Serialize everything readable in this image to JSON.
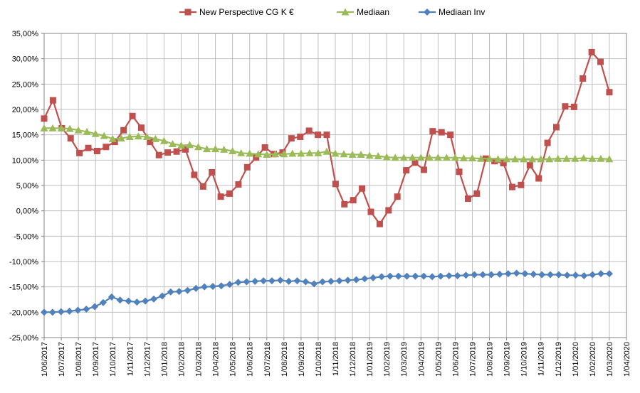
{
  "chart_data": {
    "type": "line",
    "title": "",
    "xlabel": "",
    "ylabel": "",
    "ylim": [
      -25,
      35
    ],
    "y_ticks": [
      "35,00%",
      "30,00%",
      "25,00%",
      "20,00%",
      "15,00%",
      "10,00%",
      "5,00%",
      "0,00%",
      "-5,00%",
      "-10,00%",
      "-15,00%",
      "-20,00%",
      "-25,00%"
    ],
    "x_ticks": [
      "1/06/2017",
      "1/07/2017",
      "1/08/2017",
      "1/09/2017",
      "1/10/2017",
      "1/11/2017",
      "1/12/2017",
      "1/01/2018",
      "1/02/2018",
      "1/03/2018",
      "1/04/2018",
      "1/05/2018",
      "1/06/2018",
      "1/07/2018",
      "1/08/2018",
      "1/09/2018",
      "1/10/2018",
      "1/11/2018",
      "1/12/2018",
      "1/01/2019",
      "1/02/2019",
      "1/03/2019",
      "1/04/2019",
      "1/05/2019",
      "1/06/2019",
      "1/07/2019",
      "1/08/2019",
      "1/09/2019",
      "1/10/2019",
      "1/11/2019",
      "1/12/2019",
      "1/01/2020",
      "1/02/2020",
      "1/03/2020",
      "1/04/2020"
    ],
    "grid": true,
    "legend_position": "top",
    "series": [
      {
        "name": "New Perspective CG K €",
        "color": "#c0504d",
        "marker": "square",
        "values": [
          18.2,
          21.8,
          16.3,
          14.3,
          11.4,
          12.4,
          11.8,
          12.6,
          13.6,
          15.9,
          18.7,
          16.4,
          13.6,
          11.0,
          11.5,
          11.7,
          12.1,
          7.1,
          4.8,
          7.6,
          2.8,
          3.4,
          5.2,
          8.6,
          10.5,
          12.5,
          11.2,
          11.5,
          14.3,
          14.6,
          15.8,
          15.0,
          15.0,
          5.3,
          1.3,
          2.1,
          4.4,
          -0.2,
          -2.6,
          0.1,
          2.8,
          8.0,
          9.5,
          8.1,
          15.7,
          15.5,
          15.0,
          7.7,
          2.4,
          3.4,
          10.3,
          9.8,
          9.4,
          4.7,
          5.1,
          9.0,
          6.4,
          13.4,
          16.5,
          20.6,
          20.5,
          26.1,
          31.3,
          29.4,
          23.4
        ]
      },
      {
        "name": "Mediaan",
        "color": "#9bbb59",
        "marker": "triangle",
        "values": [
          16.3,
          16.3,
          16.3,
          16.2,
          15.9,
          15.6,
          15.2,
          14.8,
          14.2,
          14.3,
          14.6,
          14.7,
          14.6,
          14.2,
          13.8,
          13.2,
          12.9,
          13.0,
          12.6,
          12.2,
          12.2,
          12.1,
          11.8,
          11.4,
          11.3,
          11.2,
          11.1,
          11.2,
          11.2,
          11.3,
          11.3,
          11.4,
          11.4,
          11.7,
          11.3,
          11.2,
          11.1,
          11.1,
          10.9,
          10.8,
          10.6,
          10.5,
          10.5,
          10.5,
          10.5,
          10.5,
          10.5,
          10.5,
          10.5,
          10.4,
          10.4,
          10.3,
          10.3,
          10.2,
          10.2,
          10.2,
          10.2,
          10.2,
          10.2,
          10.2,
          10.3,
          10.3,
          10.3,
          10.4,
          10.3,
          10.3,
          10.2
        ]
      },
      {
        "name": "Mediaan Inv",
        "color": "#4f81bd",
        "marker": "diamond",
        "values": [
          -20.0,
          -20.0,
          -19.9,
          -19.8,
          -19.6,
          -19.4,
          -18.9,
          -18.1,
          -17.0,
          -17.6,
          -17.8,
          -18.0,
          -17.8,
          -17.4,
          -16.8,
          -16.0,
          -15.9,
          -15.7,
          -15.3,
          -15.0,
          -14.9,
          -14.8,
          -14.5,
          -14.1,
          -14.0,
          -13.9,
          -13.8,
          -13.8,
          -13.7,
          -13.9,
          -13.8,
          -14.0,
          -14.4,
          -14.0,
          -13.9,
          -13.8,
          -13.7,
          -13.6,
          -13.4,
          -13.2,
          -13.0,
          -12.9,
          -12.9,
          -12.9,
          -12.9,
          -12.9,
          -13.0,
          -12.9,
          -12.8,
          -12.8,
          -12.7,
          -12.6,
          -12.6,
          -12.6,
          -12.5,
          -12.4,
          -12.3,
          -12.4,
          -12.5,
          -12.6,
          -12.6,
          -12.6,
          -12.7,
          -12.7,
          -12.8,
          -12.6,
          -12.4,
          -12.4
        ]
      }
    ]
  }
}
